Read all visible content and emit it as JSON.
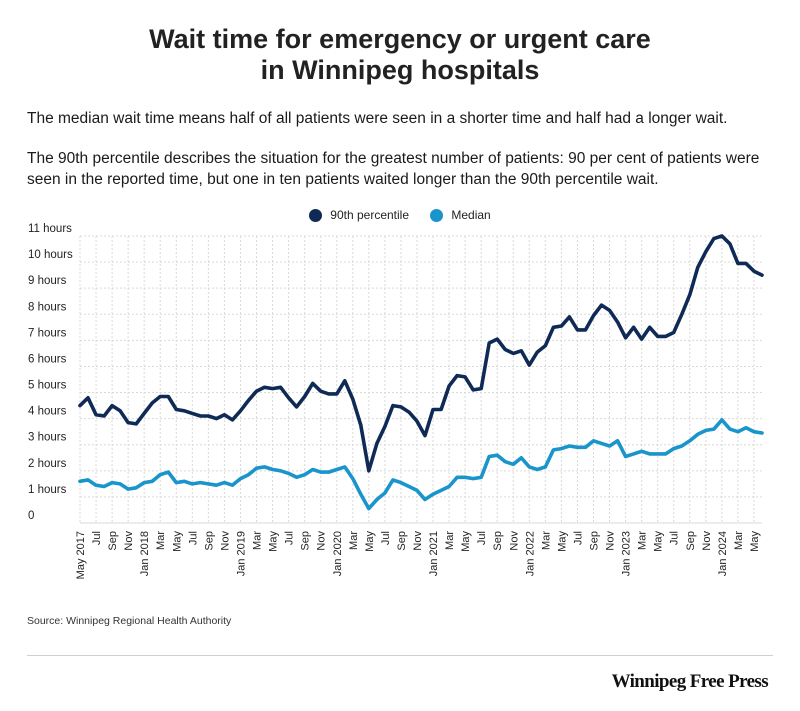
{
  "title_line1": "Wait time for emergency or urgent care",
  "title_line2": "in Winnipeg hospitals",
  "intro_1": "The median wait time means half of all patients were seen in a shorter time and half had a longer wait.",
  "intro_2": "The 90th percentile describes the situation for the greatest number of patients: 90 per cent of patients were seen in the reported time, but one in ten patients waited longer than the 90th percentile wait.",
  "source": "Source: Winnipeg Regional Health Authority",
  "brand": "Winnipeg Free Press",
  "colors": {
    "p90": "#0f2a55",
    "median": "#1a95cc",
    "grid": "#d9d9d9",
    "text": "#222222"
  },
  "chart_data": {
    "type": "line",
    "x_start": "2017-05",
    "x_end": "2024-05",
    "y_range_hours": [
      0,
      11
    ],
    "y_tick_labels": [
      "0",
      "1 hours",
      "2 hours",
      "3 hours",
      "4 hours",
      "5 hours",
      "6 hours",
      "7 hours",
      "8 hours",
      "9 hours",
      "10 hours",
      "11 hours"
    ],
    "x_tick_labels": [
      "May 2017",
      "Jul",
      "Sep",
      "Nov",
      "Jan 2018",
      "Mar",
      "May",
      "Jul",
      "Sep",
      "Nov",
      "Jan 2019",
      "Mar",
      "May",
      "Jul",
      "Sep",
      "Nov",
      "Jan 2020",
      "Mar",
      "May",
      "Jul",
      "Sep",
      "Nov",
      "Jan 2021",
      "Mar",
      "May",
      "Jul",
      "Sep",
      "Nov",
      "Jan 2022",
      "Mar",
      "May",
      "Jul",
      "Sep",
      "Nov",
      "Jan 2023",
      "Mar",
      "May",
      "Jul",
      "Sep",
      "Nov",
      "Jan 2024",
      "Mar",
      "May"
    ],
    "grid": true,
    "legend_position": "top-center",
    "series": [
      {
        "name": "90th percentile",
        "values": [
          4.5,
          4.8,
          4.15,
          4.1,
          4.5,
          4.3,
          3.85,
          3.8,
          4.2,
          4.6,
          4.85,
          4.85,
          4.35,
          4.3,
          4.2,
          4.1,
          4.1,
          4.0,
          4.15,
          3.95,
          4.3,
          4.7,
          5.05,
          5.2,
          5.15,
          5.2,
          4.8,
          4.45,
          4.85,
          5.35,
          5.05,
          4.95,
          4.95,
          5.45,
          4.75,
          3.75,
          2.0,
          3.05,
          3.7,
          4.5,
          4.45,
          4.25,
          3.9,
          3.35,
          4.35,
          4.35,
          5.25,
          5.65,
          5.6,
          5.1,
          5.15,
          6.9,
          7.05,
          6.65,
          6.5,
          6.6,
          6.05,
          6.55,
          6.8,
          7.5,
          7.55,
          7.9,
          7.4,
          7.4,
          7.95,
          8.35,
          8.15,
          7.7,
          7.1,
          7.5,
          7.05,
          7.5,
          7.15,
          7.15,
          7.3,
          8.0,
          8.75,
          9.8,
          10.4,
          10.9,
          11.0,
          10.7,
          9.95,
          9.95,
          9.65,
          9.5
        ]
      },
      {
        "name": "Median",
        "values": [
          1.6,
          1.65,
          1.45,
          1.4,
          1.55,
          1.5,
          1.3,
          1.35,
          1.55,
          1.6,
          1.85,
          1.95,
          1.55,
          1.6,
          1.5,
          1.55,
          1.5,
          1.45,
          1.55,
          1.45,
          1.7,
          1.85,
          2.1,
          2.15,
          2.05,
          2.0,
          1.9,
          1.75,
          1.85,
          2.05,
          1.95,
          1.95,
          2.05,
          2.15,
          1.7,
          1.1,
          0.55,
          0.9,
          1.15,
          1.65,
          1.55,
          1.4,
          1.25,
          0.9,
          1.1,
          1.25,
          1.4,
          1.75,
          1.75,
          1.7,
          1.75,
          2.55,
          2.6,
          2.35,
          2.25,
          2.5,
          2.15,
          2.05,
          2.15,
          2.8,
          2.85,
          2.95,
          2.9,
          2.9,
          3.15,
          3.05,
          2.95,
          3.15,
          2.55,
          2.65,
          2.75,
          2.65,
          2.65,
          2.65,
          2.85,
          2.95,
          3.15,
          3.4,
          3.55,
          3.6,
          3.95,
          3.6,
          3.5,
          3.65,
          3.5,
          3.45
        ]
      }
    ]
  }
}
